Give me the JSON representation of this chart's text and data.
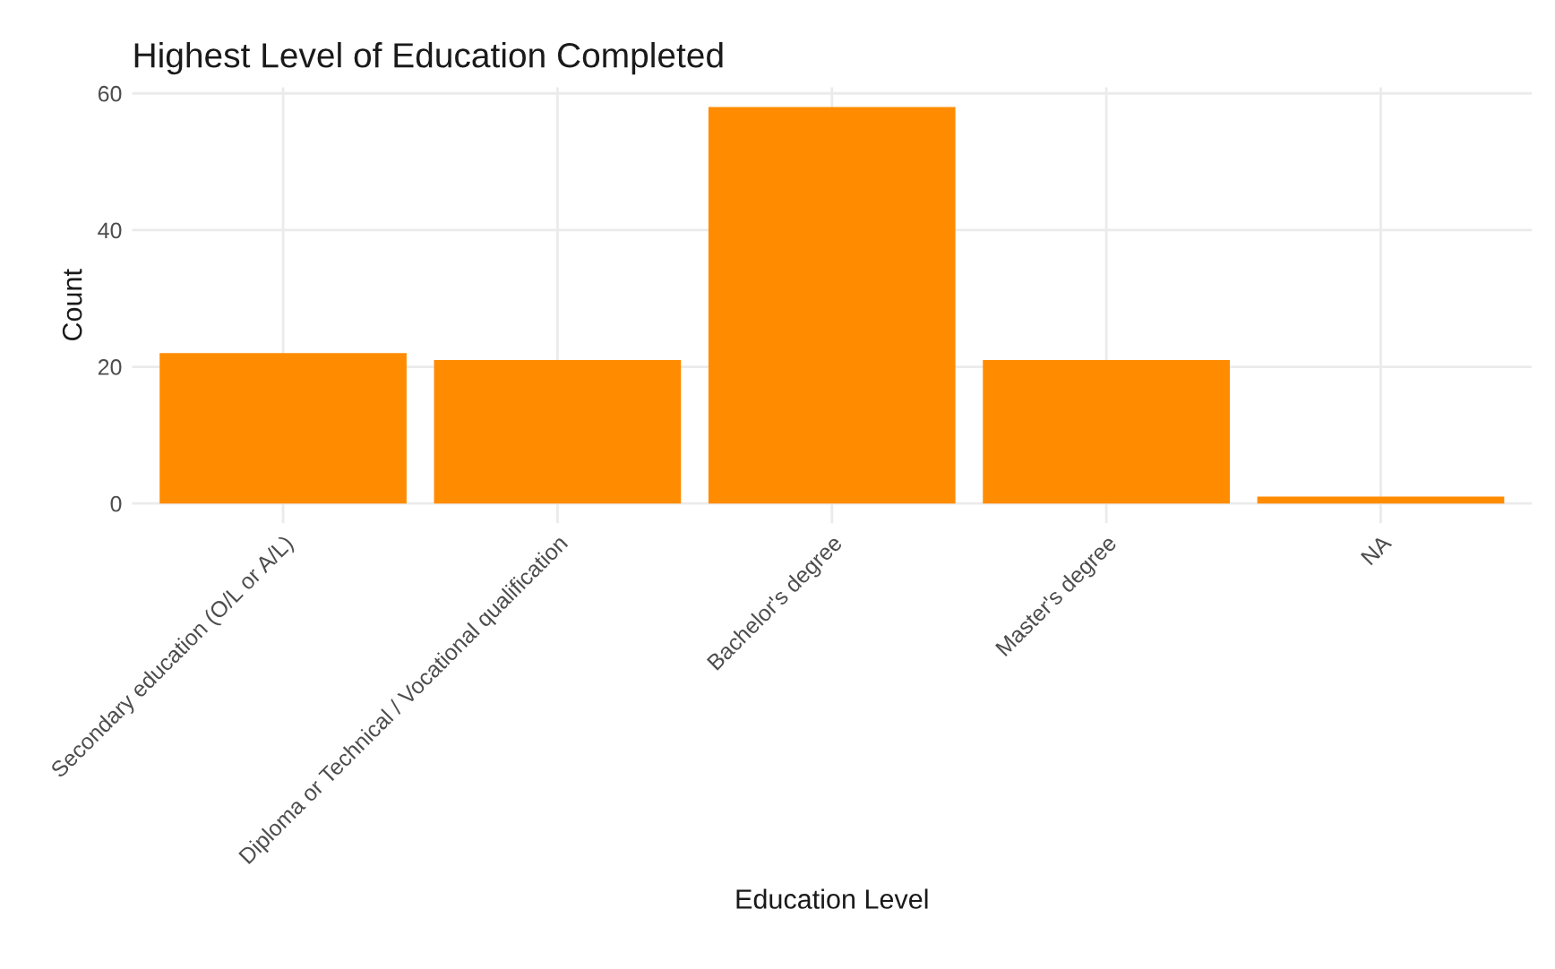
{
  "chart_data": {
    "type": "bar",
    "title": "Highest Level of Education Completed",
    "xlabel": "Education Level",
    "ylabel": "Count",
    "categories": [
      "Secondary education (O/L or A/L)",
      "Diploma or Technical / Vocational qualification",
      "Bachelor's degree",
      "Master's degree",
      "NA"
    ],
    "values": [
      22,
      21,
      58,
      21,
      1
    ],
    "color": "#ff8c00",
    "ylim": [
      -2.9,
      60.9
    ],
    "yticks": [
      0,
      20,
      40,
      60
    ],
    "grid": true
  }
}
